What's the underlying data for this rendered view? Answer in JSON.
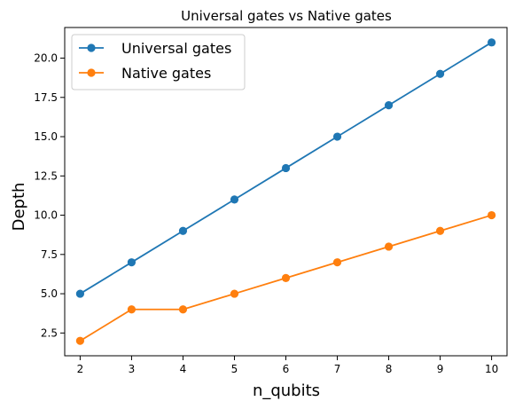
{
  "chart_data": {
    "type": "line",
    "title": "Universal gates vs Native gates",
    "xlabel": "n_qubits",
    "ylabel": "Depth",
    "xlim": [
      1.7,
      10.3
    ],
    "ylim": [
      1.05,
      21.95
    ],
    "x_ticks": [
      "2",
      "3",
      "4",
      "5",
      "6",
      "7",
      "8",
      "9",
      "10"
    ],
    "y_ticks": [
      "2.5",
      "5.0",
      "7.5",
      "10.0",
      "12.5",
      "15.0",
      "17.5",
      "20.0"
    ],
    "grid": false,
    "legend_position": "top-left",
    "x": [
      2,
      3,
      4,
      5,
      6,
      7,
      8,
      9,
      10
    ],
    "series": [
      {
        "name": "Universal gates",
        "color": "#1f77b4",
        "marker": "circle",
        "values": [
          5,
          7,
          9,
          11,
          13,
          15,
          17,
          19,
          21
        ]
      },
      {
        "name": "Native gates",
        "color": "#ff7f0e",
        "marker": "circle",
        "values": [
          2,
          4,
          4,
          5,
          6,
          7,
          8,
          9,
          10
        ]
      }
    ]
  }
}
